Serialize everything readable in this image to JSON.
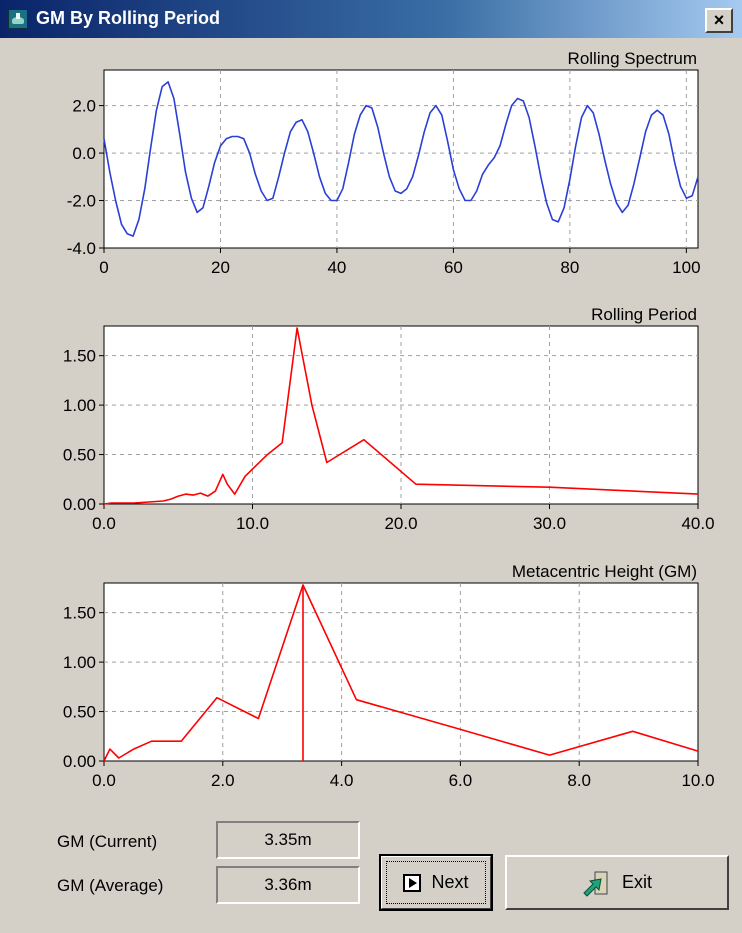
{
  "window": {
    "title": "GM By Rolling Period",
    "close_label": "×"
  },
  "fields": {
    "gm_current_label": "GM (Current)",
    "gm_current_value": "3.35m",
    "gm_average_label": "GM (Average)",
    "gm_average_value": "3.36m"
  },
  "buttons": {
    "next_label": "Next",
    "exit_label": "Exit"
  },
  "icons": {
    "app": "ship-icon",
    "next": "play-icon",
    "exit": "exit-arrow-icon"
  },
  "colors": {
    "spectrum_line": "#2a3fd6",
    "period_line": "#ff0000",
    "gm_line": "#ff0000"
  },
  "chart_data": [
    {
      "type": "line",
      "title": "Rolling Spectrum",
      "xlim": [
        0,
        102
      ],
      "ylim": [
        -4.0,
        3.5
      ],
      "xticks": [
        0,
        20,
        40,
        60,
        80,
        100
      ],
      "xtick_labels": [
        "0",
        "20",
        "40",
        "60",
        "80",
        "100"
      ],
      "yticks": [
        2.0,
        0.0,
        -2.0,
        -4.0
      ],
      "ytick_labels": [
        "2.0",
        "0.0",
        "-2.0",
        "-4.0"
      ],
      "grid": true,
      "series": [
        {
          "x": [
            0,
            1,
            2,
            3,
            4,
            5,
            6,
            7,
            8,
            9,
            10,
            11,
            12,
            13,
            14,
            15,
            16,
            17,
            18,
            19,
            20,
            21,
            22,
            23,
            24,
            25,
            26,
            27,
            28,
            29,
            30,
            31,
            32,
            33,
            34,
            35,
            36,
            37,
            38,
            39,
            40,
            41,
            42,
            43,
            44,
            45,
            46,
            47,
            48,
            49,
            50,
            51,
            52,
            53,
            54,
            55,
            56,
            57,
            58,
            59,
            60,
            61,
            62,
            63,
            64,
            65,
            66,
            67,
            68,
            69,
            70,
            71,
            72,
            73,
            74,
            75,
            76,
            77,
            78,
            79,
            80,
            81,
            82,
            83,
            84,
            85,
            86,
            87,
            88,
            89,
            90,
            91,
            92,
            93,
            94,
            95,
            96,
            97,
            98,
            99,
            100,
            101,
            102
          ],
          "y": [
            0.6,
            -0.8,
            -2.0,
            -3.0,
            -3.4,
            -3.5,
            -2.8,
            -1.5,
            0.2,
            1.8,
            2.8,
            3.0,
            2.3,
            0.8,
            -0.8,
            -1.9,
            -2.5,
            -2.3,
            -1.4,
            -0.4,
            0.3,
            0.6,
            0.7,
            0.7,
            0.6,
            0.0,
            -0.9,
            -1.6,
            -2.0,
            -1.9,
            -1.0,
            0.0,
            0.9,
            1.3,
            1.4,
            0.9,
            0.0,
            -1.0,
            -1.7,
            -2.0,
            -2.0,
            -1.5,
            -0.4,
            0.8,
            1.6,
            2.0,
            1.9,
            1.1,
            0.0,
            -1.0,
            -1.6,
            -1.7,
            -1.5,
            -1.0,
            -0.1,
            0.9,
            1.7,
            2.0,
            1.6,
            0.5,
            -0.7,
            -1.5,
            -2.0,
            -2.0,
            -1.6,
            -0.9,
            -0.5,
            -0.2,
            0.3,
            1.2,
            2.0,
            2.3,
            2.2,
            1.5,
            0.3,
            -1.0,
            -2.1,
            -2.8,
            -2.9,
            -2.3,
            -1.1,
            0.3,
            1.5,
            2.0,
            1.7,
            0.8,
            -0.3,
            -1.3,
            -2.1,
            -2.5,
            -2.2,
            -1.3,
            -0.2,
            0.9,
            1.6,
            1.8,
            1.6,
            0.8,
            -0.4,
            -1.4,
            -1.9,
            -1.8,
            -1.0
          ]
        }
      ]
    },
    {
      "type": "line",
      "title": "Rolling Period",
      "xlim": [
        0,
        40
      ],
      "ylim": [
        0,
        1.8
      ],
      "xticks": [
        0,
        10,
        20,
        30,
        40
      ],
      "xtick_labels": [
        "0.0",
        "10.0",
        "20.0",
        "30.0",
        "40.0"
      ],
      "yticks": [
        1.5,
        1.0,
        0.5,
        0.0
      ],
      "ytick_labels": [
        "1.50",
        "1.00",
        "0.50",
        "0.00"
      ],
      "grid": true,
      "series": [
        {
          "x": [
            0,
            0.5,
            1,
            2,
            3,
            4,
            4.5,
            5,
            5.5,
            6,
            6.5,
            7,
            7.5,
            8,
            8.3,
            8.8,
            9.5,
            11,
            12,
            13,
            14,
            15,
            17.5,
            21,
            30,
            40
          ],
          "y": [
            0,
            0.01,
            0.01,
            0.01,
            0.02,
            0.03,
            0.05,
            0.08,
            0.1,
            0.09,
            0.11,
            0.08,
            0.13,
            0.3,
            0.2,
            0.1,
            0.28,
            0.5,
            0.62,
            1.78,
            1.0,
            0.42,
            0.65,
            0.2,
            0.17,
            0.1
          ]
        }
      ]
    },
    {
      "type": "line",
      "title": "Metacentric Height (GM)",
      "xlim": [
        0,
        10
      ],
      "ylim": [
        0,
        1.8
      ],
      "xticks": [
        0,
        2,
        4,
        6,
        8,
        10
      ],
      "xtick_labels": [
        "0.0",
        "2.0",
        "4.0",
        "6.0",
        "8.0",
        "10.0"
      ],
      "yticks": [
        1.5,
        1.0,
        0.5,
        0.0
      ],
      "ytick_labels": [
        "1.50",
        "1.00",
        "0.50",
        "0.00"
      ],
      "grid": true,
      "marker_x": 3.35,
      "series": [
        {
          "x": [
            0,
            0.1,
            0.25,
            0.5,
            0.8,
            1.0,
            1.3,
            1.9,
            2.6,
            3.35,
            4.25,
            6.0,
            7.5,
            8.9,
            10.0
          ],
          "y": [
            0.0,
            0.12,
            0.03,
            0.12,
            0.2,
            0.2,
            0.2,
            0.64,
            0.43,
            1.78,
            0.62,
            0.32,
            0.06,
            0.3,
            0.1
          ]
        }
      ]
    }
  ]
}
